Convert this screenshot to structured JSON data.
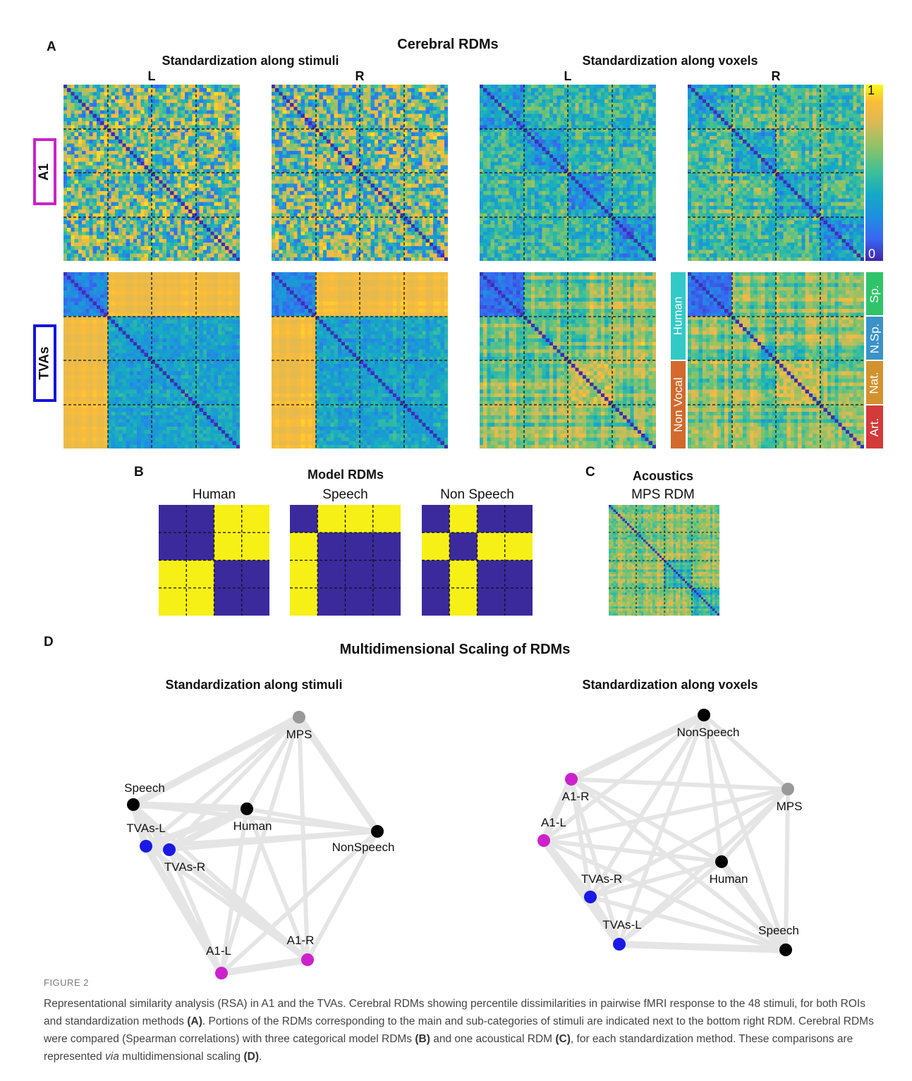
{
  "panel_a": {
    "letter": "A",
    "title": "Cerebral RDMs",
    "method_stimuli": "Standardization along stimuli",
    "method_voxels": "Standardization along voxels",
    "hemi_left": "L",
    "hemi_right": "R",
    "roi_a1": "A1",
    "roi_tvas": "TVAs",
    "colorbar_max": "1",
    "colorbar_min": "0",
    "main_categories": [
      "Human",
      "Non Vocal"
    ],
    "sub_categories": [
      "Sp.",
      "N.Sp.",
      "Nat.",
      "Art."
    ]
  },
  "panel_b": {
    "letter": "B",
    "title": "Model RDMs",
    "models": [
      "Human",
      "Speech",
      "Non Speech"
    ]
  },
  "panel_c": {
    "letter": "C",
    "title": "Acoustics",
    "subtitle": "MPS RDM"
  },
  "panel_d": {
    "letter": "D",
    "title": "Multidimensional Scaling of RDMs",
    "stimuli_title": "Standardization along stimuli",
    "voxels_title": "Standardization along voxels"
  },
  "colors": {
    "a1_roi": "#c823c8",
    "tvas_roi": "#1414dc",
    "model_low": "#3a2a9c",
    "model_high": "#f7f016",
    "cat_human": "#33c9c7",
    "cat_nonvocal": "#d26a2e",
    "cat_speech": "#2fc46a",
    "cat_nonspeech": "#3a93c8",
    "cat_natural": "#d3922f",
    "cat_artificial": "#d33a3a",
    "mds_edge": "#e5e5e5",
    "mds_model": "#000000",
    "mds_mps": "#999999",
    "mds_a1": "#cc22cc",
    "mds_tvas": "#1a1ae6"
  },
  "chart_data": [
    {
      "type": "scatter",
      "title": "Standardization along stimuli",
      "points": [
        {
          "label": "MPS",
          "group": "acoustic"
        },
        {
          "label": "Speech",
          "group": "model"
        },
        {
          "label": "Human",
          "group": "model"
        },
        {
          "label": "NonSpeech",
          "group": "model"
        },
        {
          "label": "TVAs-L",
          "group": "TVAs"
        },
        {
          "label": "TVAs-R",
          "group": "TVAs"
        },
        {
          "label": "A1-L",
          "group": "A1"
        },
        {
          "label": "A1-R",
          "group": "A1"
        }
      ]
    },
    {
      "type": "scatter",
      "title": "Standardization along voxels",
      "points": [
        {
          "label": "NonSpeech",
          "group": "model"
        },
        {
          "label": "A1-R",
          "group": "A1"
        },
        {
          "label": "MPS",
          "group": "acoustic"
        },
        {
          "label": "A1-L",
          "group": "A1"
        },
        {
          "label": "Human",
          "group": "model"
        },
        {
          "label": "TVAs-R",
          "group": "TVAs"
        },
        {
          "label": "TVAs-L",
          "group": "TVAs"
        },
        {
          "label": "Speech",
          "group": "model"
        }
      ]
    }
  ],
  "caption": {
    "figure_label": "FIGURE 2",
    "p1": "Representational similarity analysis (RSA) in A1 and the TVAs. Cerebral RDMs showing percentile dissimilarities in pairwise fMRI response to the 48 stimuli, for both ROIs and standardization methods ",
    "ref_a": "(A)",
    "p2": ". Portions of the RDMs corresponding to the main and sub-categories of stimuli are indicated next to the bottom right RDM. Cerebral RDMs were compared (Spearman correlations) with three categorical model RDMs ",
    "ref_b": "(B)",
    "p3": " and one acoustical RDM ",
    "ref_c": "(C)",
    "p4": ", for each standardization method. These comparisons are represented ",
    "via": "via",
    "p5": " multidimensional scaling ",
    "ref_d": "(D)",
    "p6": "."
  }
}
